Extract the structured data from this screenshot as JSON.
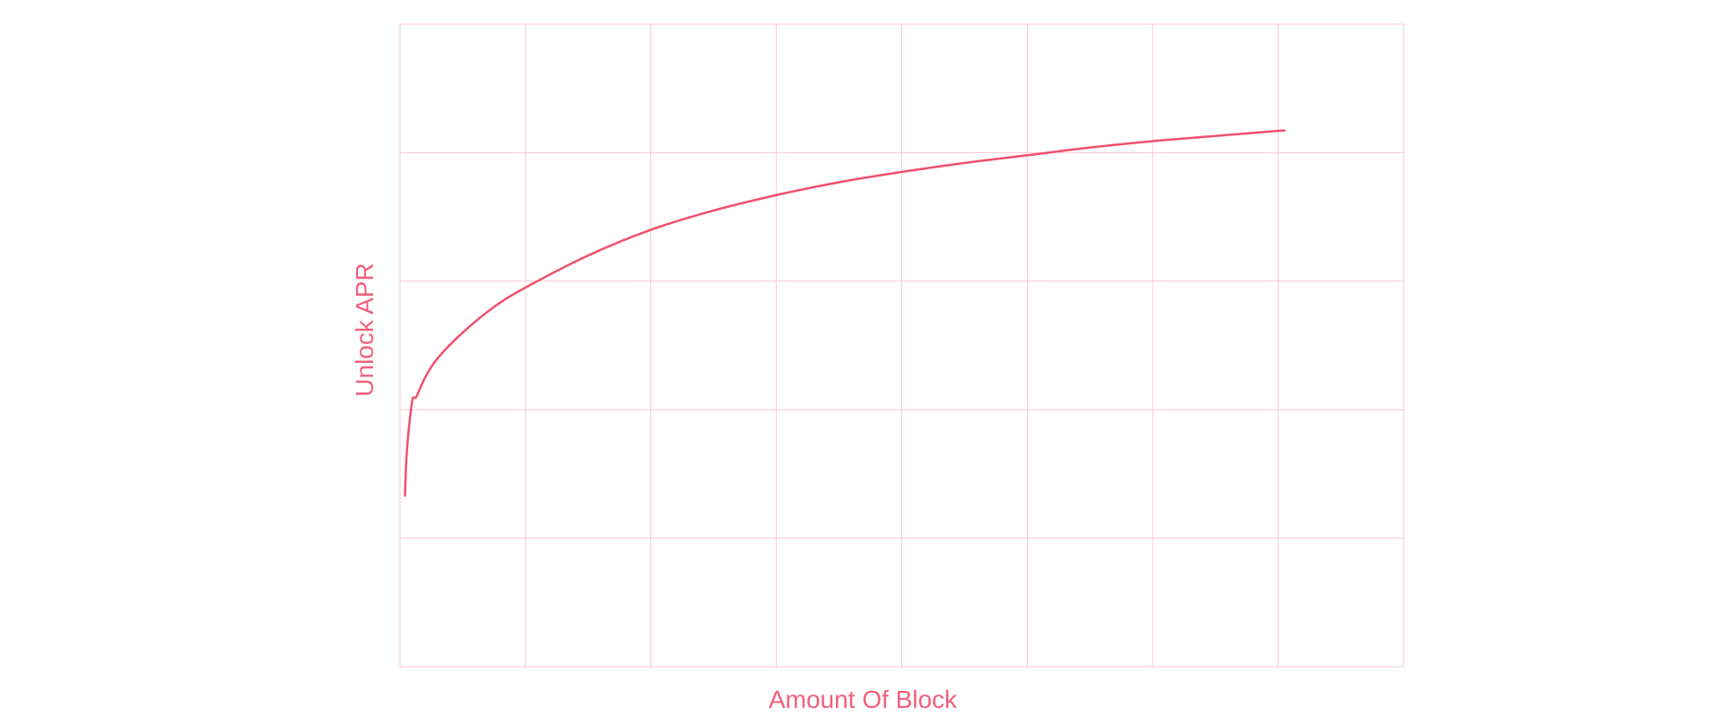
{
  "chart_data": {
    "type": "line",
    "title": "",
    "xlabel": "Amount Of Block",
    "ylabel": "Unlock APR",
    "xlim": [
      0,
      8
    ],
    "ylim": [
      0,
      5
    ],
    "grid": true,
    "x_gridlines": [
      0,
      1,
      2,
      3,
      4,
      5,
      6,
      7,
      8
    ],
    "y_gridlines": [
      0,
      1,
      2,
      3,
      4,
      5
    ],
    "colors": {
      "line": "#f0506e",
      "grid": "#f9c9d3",
      "label": "#f0607c"
    },
    "series": [
      {
        "x": [
          0.04,
          0.05,
          0.07,
          0.1,
          0.13,
          0.2,
          0.3,
          0.5,
          0.75,
          1.0,
          1.5,
          2.0,
          2.5,
          3.0,
          3.5,
          4.0,
          4.5,
          5.0,
          5.5,
          6.0,
          6.5,
          7.0,
          7.04
        ],
        "y": [
          1.33,
          1.6,
          1.85,
          2.08,
          2.1,
          2.25,
          2.4,
          2.6,
          2.8,
          2.95,
          3.2,
          3.4,
          3.55,
          3.67,
          3.77,
          3.85,
          3.92,
          3.98,
          4.04,
          4.09,
          4.13,
          4.17,
          4.17
        ]
      }
    ]
  }
}
